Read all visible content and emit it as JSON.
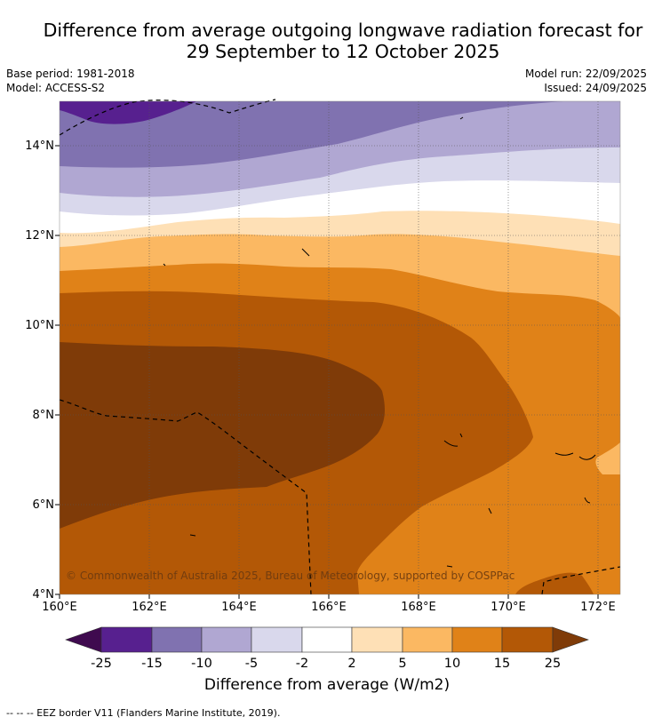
{
  "title": {
    "line1": "Difference from average outgoing longwave radiation forecast for",
    "line2": "29 September to 12 October 2025"
  },
  "meta": {
    "base_period": "Base period: 1981-2018",
    "model": "Model: ACCESS-S2",
    "model_run": "Model run: 22/09/2025",
    "issued": "Issued: 24/09/2025"
  },
  "axes": {
    "x_ticks": [
      "160°E",
      "162°E",
      "164°E",
      "166°E",
      "168°E",
      "170°E",
      "172°E"
    ],
    "y_ticks": [
      "14°N",
      "12°N",
      "10°N",
      "8°N",
      "6°N",
      "4°N"
    ]
  },
  "copyright": "© Commonwealth of Australia 2025, Bureau of Meteorology, supported by COSPPac",
  "legend": {
    "title": "Difference from average (W/m2)",
    "labels": [
      "-25",
      "-15",
      "-10",
      "-5",
      "-2",
      "2",
      "5",
      "10",
      "15",
      "25"
    ],
    "colors": {
      "below_min": "#3f0a4f",
      "c1": "#57208f",
      "c2": "#8072b0",
      "c3": "#b0a7d2",
      "c4": "#d9d8ec",
      "c5": "#ffffff",
      "c6": "#fee0b6",
      "c7": "#fbb862",
      "c8": "#e08218",
      "c9": "#b35806",
      "above_max": "#7f3b08"
    }
  },
  "footer": "-- -- -- EEZ border V11 (Flanders Marine Institute, 2019)."
}
